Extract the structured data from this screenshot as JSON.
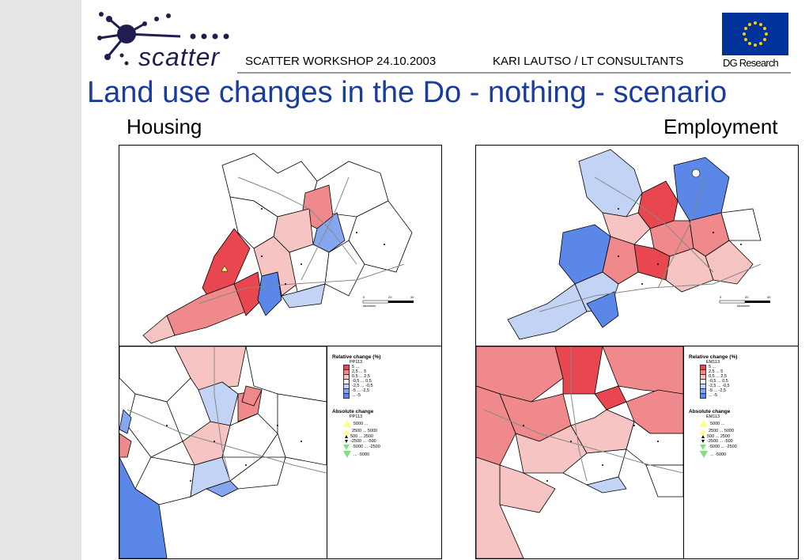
{
  "header": {
    "logo_text": "scatter",
    "workshop": "SCATTER  WORKSHOP  24.10.2003",
    "author": "KARI LAUTSO / LT CONSULTANTS",
    "dg": "DG Research"
  },
  "title": "Land use changes in the Do - nothing - scenario",
  "maps": {
    "housing": {
      "label": "Housing",
      "scale": [
        "0",
        "20",
        "40"
      ],
      "scale_unit": "kilometres",
      "legend": {
        "relative_title": "Relative change (%)",
        "relative_code": "PP113",
        "relative_items": [
          "5 ...",
          "2,5 ... 5",
          "0,5 ... 2,5",
          "-0,5 ... 0,5",
          "-2,5 ... -0,5",
          "-5 ... -2,5",
          "... -5"
        ],
        "absolute_title": "Absolute change",
        "absolute_code": "PP113",
        "absolute_items": [
          "5000 ...",
          "2500 ... 5000",
          "500 ... 2500",
          "-2500 ... -500",
          "-5000 ... -2500",
          "... -5000"
        ]
      }
    },
    "employment": {
      "label": "Employment",
      "scale": [
        "0",
        "20",
        "40"
      ],
      "scale_unit": "kilometres",
      "legend": {
        "relative_title": "Relative change (%)",
        "relative_code": "EM113",
        "relative_items": [
          "5 ...",
          "2,5 ... 5",
          "0,5 ... 2,5",
          "-0,5 ... 0,5",
          "-2,5 ... -0,5",
          "-5 ... -2,5",
          "... -5"
        ],
        "absolute_title": "Absolute change",
        "absolute_code": "EM113",
        "absolute_items": [
          "5000 ...",
          "2500 ... 5000",
          "500 ... 2500",
          "-2500 ... -500",
          "-5000 ... -2500",
          "... -5000"
        ]
      }
    }
  },
  "colors": {
    "strong_red": "#e8474f",
    "red": "#f0898c",
    "light_red": "#f7c4c4",
    "neutral": "#ffffff",
    "light_blue": "#c3d3f5",
    "blue": "#86a7ef",
    "strong_blue": "#5b87e8",
    "title_blue": "#1a3c9c",
    "eu_blue": "#003399"
  }
}
